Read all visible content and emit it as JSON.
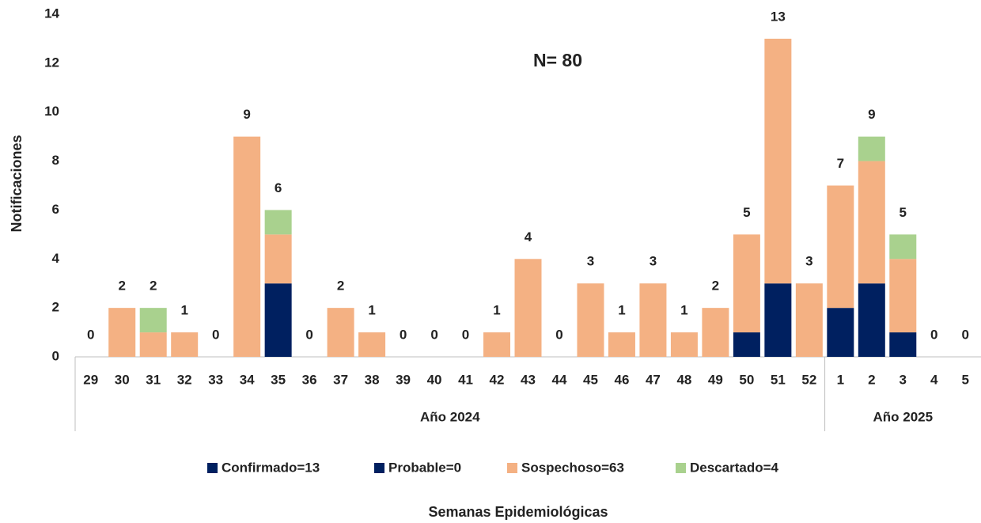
{
  "chart_data": {
    "type": "stacked_bar",
    "annotation": "N= 80",
    "y_label": "Notificaciones",
    "x_label": "Semanas Epidemiológicas",
    "groups": [
      {
        "label": "Año 2024",
        "categories": [
          "29",
          "30",
          "31",
          "32",
          "33",
          "34",
          "35",
          "36",
          "37",
          "38",
          "39",
          "40",
          "41",
          "42",
          "43",
          "44",
          "45",
          "46",
          "47",
          "48",
          "49",
          "50",
          "51",
          "52"
        ]
      },
      {
        "label": "Año 2025",
        "categories": [
          "1",
          "2",
          "3",
          "4",
          "5"
        ]
      }
    ],
    "series": [
      {
        "name": "Confirmado=13",
        "color": "#002060",
        "values": [
          0,
          0,
          0,
          0,
          0,
          0,
          3,
          0,
          0,
          0,
          0,
          0,
          0,
          0,
          0,
          0,
          0,
          0,
          0,
          0,
          0,
          1,
          3,
          0,
          2,
          3,
          1,
          0,
          0
        ]
      },
      {
        "name": "Probable=0",
        "color": "#002060",
        "values": [
          0,
          0,
          0,
          0,
          0,
          0,
          0,
          0,
          0,
          0,
          0,
          0,
          0,
          0,
          0,
          0,
          0,
          0,
          0,
          0,
          0,
          0,
          0,
          0,
          0,
          0,
          0,
          0,
          0
        ]
      },
      {
        "name": "Sospechoso=63",
        "color": "#f4b183",
        "values": [
          0,
          2,
          1,
          1,
          0,
          9,
          2,
          0,
          2,
          1,
          0,
          0,
          0,
          1,
          4,
          0,
          3,
          1,
          3,
          1,
          2,
          4,
          10,
          3,
          5,
          5,
          3,
          0,
          0
        ]
      },
      {
        "name": "Descartado=4",
        "color": "#a9d18e",
        "values": [
          0,
          0,
          1,
          0,
          0,
          0,
          1,
          0,
          0,
          0,
          0,
          0,
          0,
          0,
          0,
          0,
          0,
          0,
          0,
          0,
          0,
          0,
          0,
          0,
          0,
          1,
          1,
          0,
          0
        ]
      }
    ],
    "totals": [
      0,
      2,
      2,
      1,
      0,
      9,
      6,
      0,
      2,
      1,
      0,
      0,
      0,
      1,
      4,
      0,
      3,
      1,
      3,
      1,
      2,
      5,
      13,
      3,
      7,
      9,
      5,
      0,
      0
    ],
    "ylim": [
      0,
      14
    ],
    "yticks": [
      0,
      2,
      4,
      6,
      8,
      10,
      12,
      14
    ]
  }
}
